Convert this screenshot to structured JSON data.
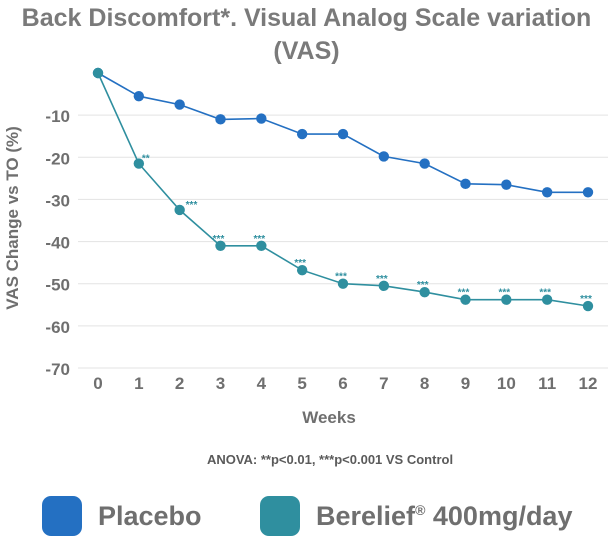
{
  "chart_data": {
    "type": "line",
    "title": "Back Discomfort*. Visual Analog Scale variation (VAS)",
    "xlabel": "Weeks",
    "ylabel": "VAS Change vs TO (%)",
    "x": [
      0,
      1,
      2,
      3,
      4,
      5,
      6,
      7,
      8,
      9,
      10,
      11,
      12
    ],
    "yticks": [
      -10,
      -20,
      -30,
      -40,
      -50,
      -60,
      -70
    ],
    "ylim": [
      -70,
      0
    ],
    "grid": true,
    "series": [
      {
        "name": "Placebo",
        "color": "#2470c2",
        "values": [
          0,
          -5.5,
          -7.5,
          -11,
          -10.8,
          -14.5,
          -14.5,
          -19.8,
          -21.5,
          -26.3,
          -26.5,
          -28.3,
          -28.3
        ],
        "annotations": [
          "",
          "",
          "",
          "",
          "",
          "",
          "",
          "",
          "",
          "",
          "",
          "",
          ""
        ]
      },
      {
        "name": "Berelief",
        "name_sup": "®",
        "name_suffix": " 400mg/day",
        "color": "#2f8f9f",
        "values": [
          0,
          -21.5,
          -32.5,
          -41,
          -41,
          -46.8,
          -50,
          -50.5,
          -52,
          -53.8,
          -53.8,
          -53.8,
          -55.3
        ],
        "annotations": [
          "",
          "**",
          "***",
          "***",
          "***",
          "***",
          "***",
          "***",
          "***",
          "***",
          "***",
          "***",
          "***"
        ]
      }
    ],
    "footnote": "ANOVA: **p<0.01, ***p<0.001 VS Control"
  }
}
